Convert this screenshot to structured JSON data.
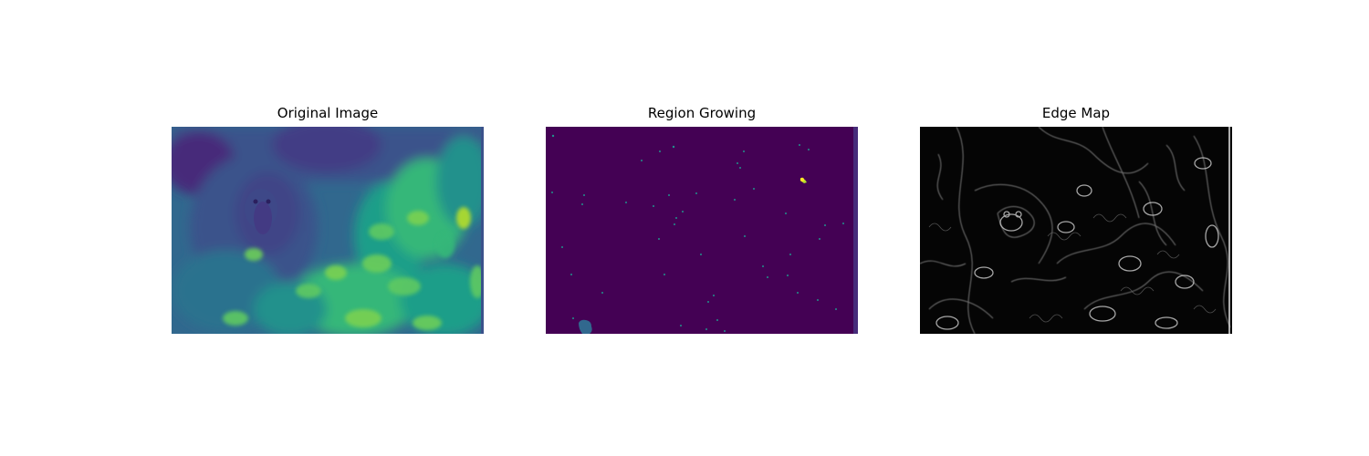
{
  "figure": {
    "panels": [
      {
        "title": "Original Image",
        "colormap": "viridis"
      },
      {
        "title": "Region Growing",
        "colormap": "viridis"
      },
      {
        "title": "Edge Map",
        "colormap": "gray"
      }
    ]
  },
  "colors": {
    "viridis_dark": "#440154",
    "viridis_blue": "#3b528b",
    "viridis_teal": "#21918c",
    "viridis_green": "#5ec962",
    "viridis_yellow": "#fde725",
    "edge_black": "#050505",
    "edge_white": "#d9d9d9"
  }
}
